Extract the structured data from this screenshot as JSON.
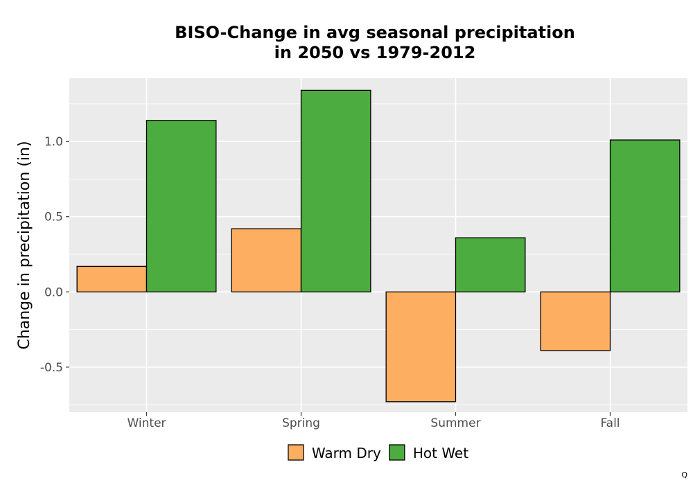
{
  "chart_data": {
    "type": "bar",
    "title_lines": [
      "BISO-Change in avg seasonal precipitation",
      "in 2050 vs 1979-2012"
    ],
    "xlabel": "",
    "ylabel": "Change in precipitation (in)",
    "categories": [
      "Winter",
      "Spring",
      "Summer",
      "Fall"
    ],
    "series": [
      {
        "name": "Warm Dry",
        "color": "#fdae61",
        "values": [
          0.17,
          0.42,
          -0.73,
          -0.39
        ]
      },
      {
        "name": "Hot Wet",
        "color": "#4dac3f",
        "values": [
          1.14,
          1.34,
          0.36,
          1.01
        ]
      }
    ],
    "ylim": [
      -0.8,
      1.42
    ],
    "yticks": [
      -0.5,
      0.0,
      0.5,
      1.0
    ],
    "ytick_labels": [
      "-0.5",
      "0.0",
      "0.5",
      "1.0"
    ],
    "grid": true,
    "panel_background": "#ebebeb",
    "legend_position": "bottom"
  },
  "corner_mark": "Q"
}
